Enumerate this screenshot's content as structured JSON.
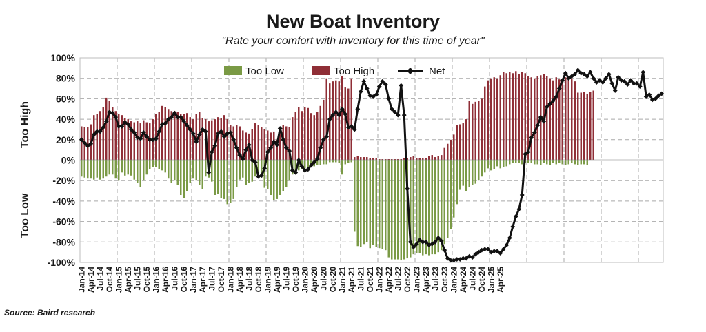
{
  "chart_data": {
    "type": "bar",
    "title": "New Boat Inventory",
    "subtitle": "\"Rate your comfort with inventory for this time of year\"",
    "source": "Source: Baird research",
    "ylabel_positive": "Too High",
    "ylabel_negative": "Too Low",
    "ylim": [
      -100,
      100
    ],
    "yticks": [
      -100,
      -80,
      -60,
      -40,
      -20,
      0,
      20,
      40,
      60,
      80,
      100
    ],
    "ytick_labels": [
      "-100%",
      "-80%",
      "-60%",
      "-40%",
      "-20%",
      "0%",
      "20%",
      "40%",
      "60%",
      "80%",
      "100%"
    ],
    "grid": true,
    "legend_position": "top",
    "x_tick_labels": [
      "Jan-14",
      "Apr-14",
      "Jul-14",
      "Oct-14",
      "Jan-15",
      "Apr-15",
      "Jul-15",
      "Oct-15",
      "Jan-16",
      "Apr-16",
      "Jul-16",
      "Oct-16",
      "Jan-17",
      "Apr-17",
      "Jul-17",
      "Oct-17",
      "Jan-18",
      "Apr-18",
      "Jul-18",
      "Oct-18",
      "Jan-19",
      "Apr-19",
      "Jul-19",
      "Oct-19",
      "Jan-20",
      "Apr-20",
      "Jul-20",
      "Oct-20",
      "Jan-21",
      "Apr-21",
      "Jul-21",
      "Oct-21",
      "Jan-22",
      "Apr-22",
      "Jul-22",
      "Oct-22",
      "Jan-23",
      "Apr-23",
      "Jul-23",
      "Oct-23",
      "Jan-24",
      "Apr-24",
      "Jul-24",
      "Oct-24",
      "Jan-25",
      "Apr-25"
    ],
    "months_start": "Jan-14",
    "series": [
      {
        "name": "Too Low",
        "kind": "bar",
        "color": "#7a9a45",
        "values": [
          -16,
          -17,
          -18,
          -18,
          -19,
          -17,
          -19,
          -18,
          -16,
          -14,
          -14,
          -18,
          -20,
          -12,
          -15,
          -14,
          -15,
          -19,
          -22,
          -26,
          -20,
          -14,
          -9,
          -7,
          -7,
          -9,
          -10,
          -12,
          -18,
          -22,
          -20,
          -24,
          -34,
          -37,
          -30,
          -22,
          -18,
          -20,
          -24,
          -28,
          -16,
          -17,
          -21,
          -34,
          -33,
          -37,
          -38,
          -43,
          -42,
          -38,
          -26,
          -19,
          -17,
          -24,
          -22,
          -21,
          -16,
          -16,
          -17,
          -27,
          -28,
          -34,
          -39,
          -38,
          -34,
          -30,
          -26,
          -20,
          -14,
          -10,
          -10,
          -9,
          -8,
          -8,
          -7,
          -6,
          -5,
          -5,
          -4,
          -4,
          -2,
          -2,
          -2,
          -3,
          -14,
          -4,
          -3,
          -2,
          -70,
          -84,
          -85,
          -82,
          -80,
          -86,
          -83,
          -85,
          -86,
          -87,
          -88,
          -95,
          -97,
          -97,
          -97,
          -98,
          -97,
          -96,
          -95,
          -92,
          -91,
          -91,
          -93,
          -92,
          -93,
          -92,
          -92,
          -90,
          -88,
          -82,
          -76,
          -67,
          -56,
          -43,
          -29,
          -25,
          -30,
          -26,
          -24,
          -23,
          -20,
          -16,
          -12,
          -8,
          -10,
          -9,
          -6,
          -8,
          -7,
          -6,
          -4,
          -3,
          -3,
          -3,
          -4,
          -3,
          -3,
          -3,
          -4,
          -4,
          -5,
          -3,
          -4,
          -5,
          -3,
          -4,
          -3,
          -4,
          -5,
          -4,
          -3,
          -4,
          -5,
          -4,
          -4,
          -5
        ]
      },
      {
        "name": "Too High",
        "kind": "bar",
        "color": "#8f2e36",
        "values": [
          33,
          32,
          32,
          35,
          44,
          45,
          48,
          52,
          61,
          58,
          52,
          48,
          45,
          44,
          41,
          40,
          38,
          37,
          38,
          36,
          39,
          37,
          36,
          40,
          45,
          47,
          53,
          52,
          50,
          48,
          48,
          47,
          45,
          45,
          46,
          42,
          40,
          45,
          47,
          41,
          40,
          38,
          39,
          40,
          42,
          41,
          44,
          40,
          34,
          33,
          34,
          33,
          29,
          27,
          26,
          30,
          36,
          34,
          32,
          30,
          29,
          27,
          28,
          20,
          26,
          34,
          33,
          32,
          42,
          47,
          52,
          48,
          52,
          51,
          46,
          44,
          47,
          53,
          59,
          80,
          75,
          77,
          78,
          77,
          82,
          71,
          70,
          80,
          3,
          4,
          3,
          3,
          3,
          2,
          2,
          2,
          1,
          1,
          1,
          1,
          1,
          1,
          1,
          1,
          2,
          2,
          3,
          4,
          2,
          2,
          2,
          2,
          4,
          5,
          3,
          4,
          5,
          12,
          16,
          20,
          25,
          34,
          35,
          36,
          40,
          58,
          55,
          57,
          58,
          60,
          72,
          78,
          80,
          81,
          80,
          83,
          86,
          85,
          86,
          85,
          87,
          84,
          86,
          85,
          82,
          81,
          80,
          82,
          83,
          84,
          82,
          80,
          78,
          81,
          79,
          78,
          81,
          80,
          80,
          77,
          66,
          66,
          67,
          65,
          67,
          68
        ]
      },
      {
        "name": "Net",
        "kind": "line",
        "color": "#111111",
        "values": [
          20,
          17,
          14,
          16,
          25,
          28,
          28,
          32,
          38,
          47,
          46,
          42,
          33,
          33,
          37,
          35,
          30,
          27,
          22,
          21,
          27,
          23,
          20,
          20,
          21,
          28,
          35,
          36,
          40,
          42,
          46,
          42,
          42,
          38,
          34,
          30,
          26,
          18,
          25,
          30,
          28,
          -12,
          8,
          14,
          26,
          28,
          23,
          26,
          27,
          20,
          12,
          5,
          1,
          10,
          15,
          0,
          -2,
          -16,
          -15,
          -8,
          8,
          12,
          18,
          15,
          31,
          20,
          12,
          9,
          -10,
          -12,
          0,
          -6,
          -10,
          -9,
          -5,
          -2,
          1,
          12,
          20,
          23,
          40,
          44,
          47,
          44,
          50,
          45,
          32,
          33,
          30,
          50,
          67,
          77,
          70,
          63,
          62,
          64,
          72,
          77,
          74,
          60,
          50,
          47,
          44,
          73,
          44,
          -28,
          -80,
          -85,
          -82,
          -78,
          -80,
          -80,
          -83,
          -82,
          -80,
          -76,
          -79,
          -88,
          -96,
          -98,
          -98,
          -97,
          -97,
          -96,
          -96,
          -94,
          -95,
          -92,
          -90,
          -88,
          -87,
          -87,
          -90,
          -89,
          -89,
          -91,
          -87,
          -83,
          -76,
          -65,
          -55,
          -48,
          -34,
          6,
          8,
          22,
          27,
          34,
          42,
          38,
          52,
          55,
          58,
          62,
          70,
          78,
          85,
          80,
          82,
          84,
          88,
          85,
          84,
          82,
          86,
          80,
          76,
          78,
          76,
          80,
          84,
          75,
          68,
          81,
          78,
          77,
          74,
          78,
          75,
          75,
          72,
          86,
          62,
          64,
          59,
          60,
          63,
          65
        ]
      }
    ]
  }
}
